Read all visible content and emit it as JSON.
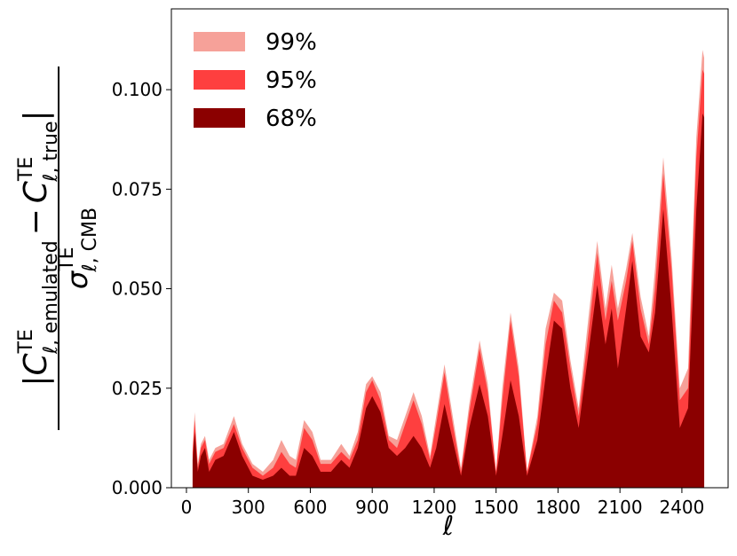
{
  "chart_data": {
    "type": "area",
    "xlabel": "ℓ",
    "ylabel": {
      "numerator": {
        "open": "|",
        "c1": "C",
        "sup1": "TE",
        "sub1": "ℓ, emulated",
        "minus": "−",
        "c2": "C",
        "sup2": "TE",
        "sub2": "ℓ, true",
        "close": "|"
      },
      "denominator": {
        "sigma": "σ",
        "sup": "TE",
        "sub": "ℓ, CMB"
      }
    },
    "x": [
      30,
      40,
      55,
      70,
      90,
      110,
      140,
      180,
      230,
      270,
      320,
      370,
      420,
      460,
      500,
      530,
      570,
      610,
      650,
      700,
      750,
      790,
      830,
      870,
      900,
      940,
      980,
      1020,
      1060,
      1100,
      1140,
      1180,
      1210,
      1250,
      1290,
      1330,
      1370,
      1420,
      1460,
      1500,
      1530,
      1570,
      1610,
      1650,
      1700,
      1740,
      1780,
      1820,
      1860,
      1900,
      1950,
      1990,
      2030,
      2060,
      2090,
      2130,
      2160,
      2200,
      2240,
      2270,
      2310,
      2350,
      2390,
      2430,
      2470,
      2500,
      2508
    ],
    "series": [
      {
        "name": "99%",
        "color": "#f6a199",
        "values": [
          0.01,
          0.019,
          0.006,
          0.011,
          0.013,
          0.007,
          0.01,
          0.011,
          0.018,
          0.011,
          0.006,
          0.004,
          0.007,
          0.012,
          0.008,
          0.007,
          0.017,
          0.014,
          0.007,
          0.007,
          0.011,
          0.008,
          0.014,
          0.026,
          0.028,
          0.024,
          0.013,
          0.012,
          0.018,
          0.024,
          0.018,
          0.008,
          0.018,
          0.031,
          0.018,
          0.005,
          0.021,
          0.037,
          0.026,
          0.004,
          0.025,
          0.044,
          0.03,
          0.004,
          0.018,
          0.04,
          0.049,
          0.047,
          0.032,
          0.02,
          0.044,
          0.062,
          0.045,
          0.056,
          0.045,
          0.055,
          0.064,
          0.048,
          0.038,
          0.055,
          0.083,
          0.058,
          0.025,
          0.03,
          0.088,
          0.11,
          0.108
        ]
      },
      {
        "name": "95%",
        "color": "#fe3f3f",
        "values": [
          0.009,
          0.017,
          0.005,
          0.01,
          0.012,
          0.006,
          0.009,
          0.01,
          0.016,
          0.01,
          0.005,
          0.003,
          0.005,
          0.009,
          0.006,
          0.005,
          0.015,
          0.012,
          0.006,
          0.006,
          0.009,
          0.007,
          0.012,
          0.024,
          0.027,
          0.022,
          0.012,
          0.01,
          0.016,
          0.022,
          0.016,
          0.007,
          0.016,
          0.029,
          0.016,
          0.004,
          0.019,
          0.035,
          0.024,
          0.004,
          0.022,
          0.042,
          0.028,
          0.004,
          0.016,
          0.036,
          0.047,
          0.044,
          0.03,
          0.018,
          0.04,
          0.059,
          0.042,
          0.052,
          0.042,
          0.052,
          0.062,
          0.045,
          0.036,
          0.05,
          0.079,
          0.055,
          0.022,
          0.025,
          0.083,
          0.105,
          0.104
        ]
      },
      {
        "name": "68%",
        "color": "#8b0000",
        "values": [
          0.007,
          0.014,
          0.004,
          0.008,
          0.01,
          0.004,
          0.007,
          0.008,
          0.014,
          0.008,
          0.003,
          0.002,
          0.003,
          0.005,
          0.003,
          0.003,
          0.01,
          0.008,
          0.004,
          0.004,
          0.007,
          0.005,
          0.01,
          0.02,
          0.023,
          0.019,
          0.01,
          0.008,
          0.01,
          0.013,
          0.01,
          0.005,
          0.01,
          0.021,
          0.012,
          0.003,
          0.015,
          0.026,
          0.018,
          0.003,
          0.013,
          0.027,
          0.018,
          0.003,
          0.012,
          0.028,
          0.042,
          0.04,
          0.025,
          0.015,
          0.035,
          0.051,
          0.036,
          0.045,
          0.03,
          0.045,
          0.057,
          0.038,
          0.034,
          0.044,
          0.07,
          0.045,
          0.015,
          0.02,
          0.07,
          0.094,
          0.093
        ]
      }
    ],
    "xlim": [
      -73,
      2624
    ],
    "ylim": [
      0,
      0.1203
    ],
    "xticks": [
      0,
      300,
      600,
      900,
      1200,
      1500,
      1800,
      2100,
      2400
    ],
    "yticks": [
      {
        "value": 0,
        "label": "0.000"
      },
      {
        "value": 0.025,
        "label": "0.025"
      },
      {
        "value": 0.05,
        "label": "0.050"
      },
      {
        "value": 0.075,
        "label": "0.075"
      },
      {
        "value": 0.1,
        "label": "0.100"
      }
    ],
    "legend": "upper left"
  }
}
